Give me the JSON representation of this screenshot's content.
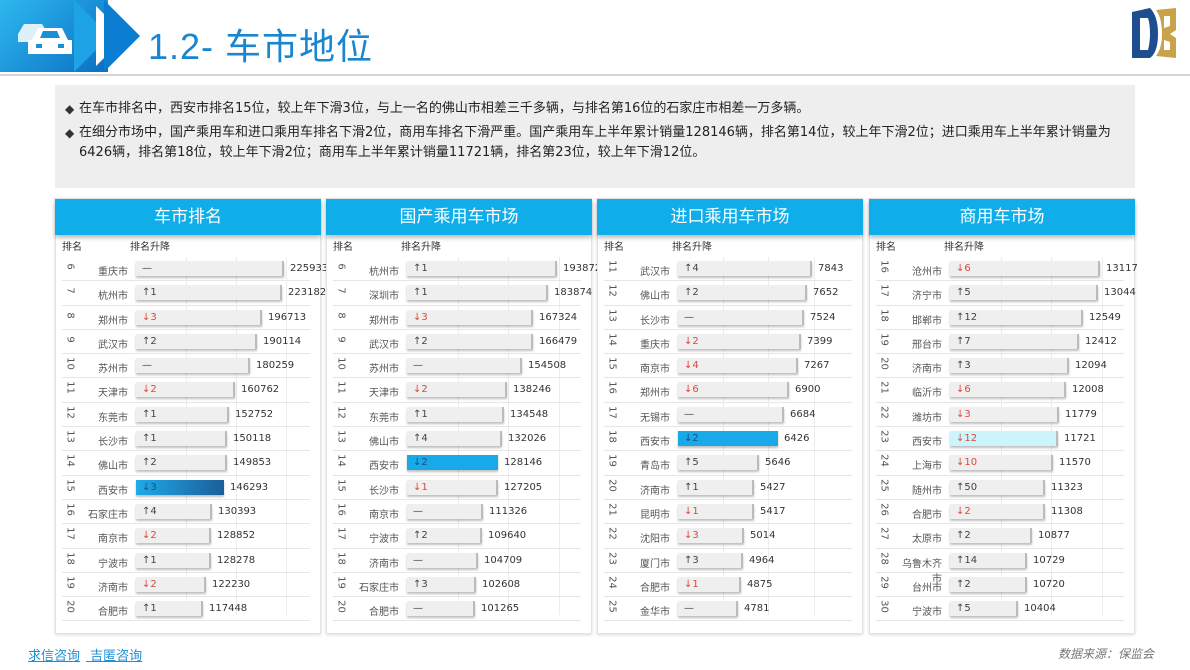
{
  "header": {
    "title": "1.2- 车市地位",
    "icon": "car-icon",
    "logo": "db-logo"
  },
  "summary": {
    "bullets": [
      "在车市排名中，西安市排名15位，较上年下滑3位，与上一名的佛山市相差三千多辆，与排名第16位的石家庄市相差一万多辆。",
      "在细分市场中，国产乘用车和进口乘用车排名下滑2位，商用车排名下滑严重。国产乘用车上半年累计销量128146辆，排名第14位，较上年下滑2位；进口乘用车上半年累计销量为6426辆，排名第18位，较上年下滑2位；商用车上半年累计销量11721辆，排名第23位，较上年下滑12位。"
    ]
  },
  "column_headers": {
    "rank": "排名",
    "change": "排名升降"
  },
  "panels": [
    {
      "title": "车市排名",
      "max": 225933,
      "rows": [
        {
          "rank": "6",
          "city": "重庆市",
          "change": "—",
          "dir": "flat",
          "value": "225933"
        },
        {
          "rank": "7",
          "city": "杭州市",
          "change": "↑1",
          "dir": "up",
          "value": "223182"
        },
        {
          "rank": "8",
          "city": "郑州市",
          "change": "↓3",
          "dir": "down",
          "value": "196713"
        },
        {
          "rank": "9",
          "city": "武汉市",
          "change": "↑2",
          "dir": "up",
          "value": "190114"
        },
        {
          "rank": "10",
          "city": "苏州市",
          "change": "—",
          "dir": "flat",
          "value": "180259"
        },
        {
          "rank": "11",
          "city": "天津市",
          "change": "↓2",
          "dir": "down",
          "value": "160762"
        },
        {
          "rank": "12",
          "city": "东莞市",
          "change": "↑1",
          "dir": "up",
          "value": "152752"
        },
        {
          "rank": "13",
          "city": "长沙市",
          "change": "↑1",
          "dir": "up",
          "value": "150118"
        },
        {
          "rank": "14",
          "city": "佛山市",
          "change": "↑2",
          "dir": "up",
          "value": "149853"
        },
        {
          "rank": "15",
          "city": "西安市",
          "change": "↓3",
          "dir": "down",
          "value": "146293",
          "highlight": "hl1"
        },
        {
          "rank": "16",
          "city": "石家庄市",
          "change": "↑4",
          "dir": "up",
          "value": "130393"
        },
        {
          "rank": "17",
          "city": "南京市",
          "change": "↓2",
          "dir": "down",
          "value": "128852"
        },
        {
          "rank": "18",
          "city": "宁波市",
          "change": "↑1",
          "dir": "up",
          "value": "128278"
        },
        {
          "rank": "19",
          "city": "济南市",
          "change": "↓2",
          "dir": "down",
          "value": "122230"
        },
        {
          "rank": "20",
          "city": "合肥市",
          "change": "↑1",
          "dir": "up",
          "value": "117448"
        }
      ]
    },
    {
      "title": "国产乘用车市场",
      "max": 193872,
      "rows": [
        {
          "rank": "6",
          "city": "杭州市",
          "change": "↑1",
          "dir": "up",
          "value": "193872"
        },
        {
          "rank": "7",
          "city": "深圳市",
          "change": "↑1",
          "dir": "up",
          "value": "183874"
        },
        {
          "rank": "8",
          "city": "郑州市",
          "change": "↓3",
          "dir": "down",
          "value": "167324"
        },
        {
          "rank": "9",
          "city": "武汉市",
          "change": "↑2",
          "dir": "up",
          "value": "166479"
        },
        {
          "rank": "10",
          "city": "苏州市",
          "change": "—",
          "dir": "flat",
          "value": "154508"
        },
        {
          "rank": "11",
          "city": "天津市",
          "change": "↓2",
          "dir": "down",
          "value": "138246"
        },
        {
          "rank": "12",
          "city": "东莞市",
          "change": "↑1",
          "dir": "up",
          "value": "134548"
        },
        {
          "rank": "13",
          "city": "佛山市",
          "change": "↑4",
          "dir": "up",
          "value": "132026"
        },
        {
          "rank": "14",
          "city": "西安市",
          "change": "↓2",
          "dir": "down",
          "value": "128146",
          "highlight": "hl2"
        },
        {
          "rank": "15",
          "city": "长沙市",
          "change": "↓1",
          "dir": "down",
          "value": "127205"
        },
        {
          "rank": "16",
          "city": "南京市",
          "change": "—",
          "dir": "flat",
          "value": "111326"
        },
        {
          "rank": "17",
          "city": "宁波市",
          "change": "↑2",
          "dir": "up",
          "value": "109640"
        },
        {
          "rank": "18",
          "city": "济南市",
          "change": "—",
          "dir": "flat",
          "value": "104709"
        },
        {
          "rank": "19",
          "city": "石家庄市",
          "change": "↑3",
          "dir": "up",
          "value": "102608"
        },
        {
          "rank": "20",
          "city": "合肥市",
          "change": "—",
          "dir": "flat",
          "value": "101265"
        }
      ]
    },
    {
      "title": "进口乘用车市场",
      "max": 7843,
      "rows": [
        {
          "rank": "11",
          "city": "武汉市",
          "change": "↑4",
          "dir": "up",
          "value": "7843"
        },
        {
          "rank": "12",
          "city": "佛山市",
          "change": "↑2",
          "dir": "up",
          "value": "7652"
        },
        {
          "rank": "13",
          "city": "长沙市",
          "change": "—",
          "dir": "flat",
          "value": "7524"
        },
        {
          "rank": "14",
          "city": "重庆市",
          "change": "↓2",
          "dir": "down",
          "value": "7399"
        },
        {
          "rank": "15",
          "city": "南京市",
          "change": "↓4",
          "dir": "down",
          "value": "7267"
        },
        {
          "rank": "16",
          "city": "郑州市",
          "change": "↓6",
          "dir": "down",
          "value": "6900"
        },
        {
          "rank": "17",
          "city": "无锡市",
          "change": "—",
          "dir": "flat",
          "value": "6684"
        },
        {
          "rank": "18",
          "city": "西安市",
          "change": "↓2",
          "dir": "down",
          "value": "6426",
          "highlight": "hl2"
        },
        {
          "rank": "19",
          "city": "青岛市",
          "change": "↑5",
          "dir": "up",
          "value": "5646"
        },
        {
          "rank": "20",
          "city": "济南市",
          "change": "↑1",
          "dir": "up",
          "value": "5427"
        },
        {
          "rank": "21",
          "city": "昆明市",
          "change": "↓1",
          "dir": "down",
          "value": "5417"
        },
        {
          "rank": "22",
          "city": "沈阳市",
          "change": "↓3",
          "dir": "down",
          "value": "5014"
        },
        {
          "rank": "23",
          "city": "厦门市",
          "change": "↑3",
          "dir": "up",
          "value": "4964"
        },
        {
          "rank": "24",
          "city": "合肥市",
          "change": "↓1",
          "dir": "down",
          "value": "4875"
        },
        {
          "rank": "25",
          "city": "金华市",
          "change": "—",
          "dir": "flat",
          "value": "4781"
        }
      ]
    },
    {
      "title": "商用车市场",
      "max": 13117,
      "rows": [
        {
          "rank": "16",
          "city": "沧州市",
          "change": "↓6",
          "dir": "down",
          "value": "13117"
        },
        {
          "rank": "17",
          "city": "济宁市",
          "change": "↑5",
          "dir": "up",
          "value": "13044"
        },
        {
          "rank": "18",
          "city": "邯郸市",
          "change": "↑12",
          "dir": "up",
          "value": "12549"
        },
        {
          "rank": "19",
          "city": "邢台市",
          "change": "↑7",
          "dir": "up",
          "value": "12412"
        },
        {
          "rank": "20",
          "city": "济南市",
          "change": "↑3",
          "dir": "up",
          "value": "12094"
        },
        {
          "rank": "21",
          "city": "临沂市",
          "change": "↓6",
          "dir": "down",
          "value": "12008"
        },
        {
          "rank": "22",
          "city": "潍坊市",
          "change": "↓3",
          "dir": "down",
          "value": "11779"
        },
        {
          "rank": "23",
          "city": "西安市",
          "change": "↓12",
          "dir": "down",
          "value": "11721",
          "highlight": "hl3"
        },
        {
          "rank": "24",
          "city": "上海市",
          "change": "↓10",
          "dir": "down",
          "value": "11570"
        },
        {
          "rank": "25",
          "city": "随州市",
          "change": "↑50",
          "dir": "up",
          "value": "11323"
        },
        {
          "rank": "26",
          "city": "合肥市",
          "change": "↓2",
          "dir": "down",
          "value": "11308"
        },
        {
          "rank": "27",
          "city": "太原市",
          "change": "↑2",
          "dir": "up",
          "value": "10877"
        },
        {
          "rank": "28",
          "city": "乌鲁木齐市",
          "change": "↑14",
          "dir": "up",
          "value": "10729"
        },
        {
          "rank": "29",
          "city": "台州市",
          "change": "↑2",
          "dir": "up",
          "value": "10720"
        },
        {
          "rank": "30",
          "city": "宁波市",
          "change": "↑5",
          "dir": "up",
          "value": "10404"
        }
      ]
    }
  ],
  "footer": {
    "links": [
      "求信咨询",
      "吉匿咨询"
    ],
    "source": "数据来源：保监会"
  },
  "colors": {
    "accent": "#0faeea",
    "title": "#1a86cf",
    "down": "#e0483a",
    "highlight_gradient_end": "#1c5e9a",
    "highlight_light": "#ccf4fb"
  }
}
